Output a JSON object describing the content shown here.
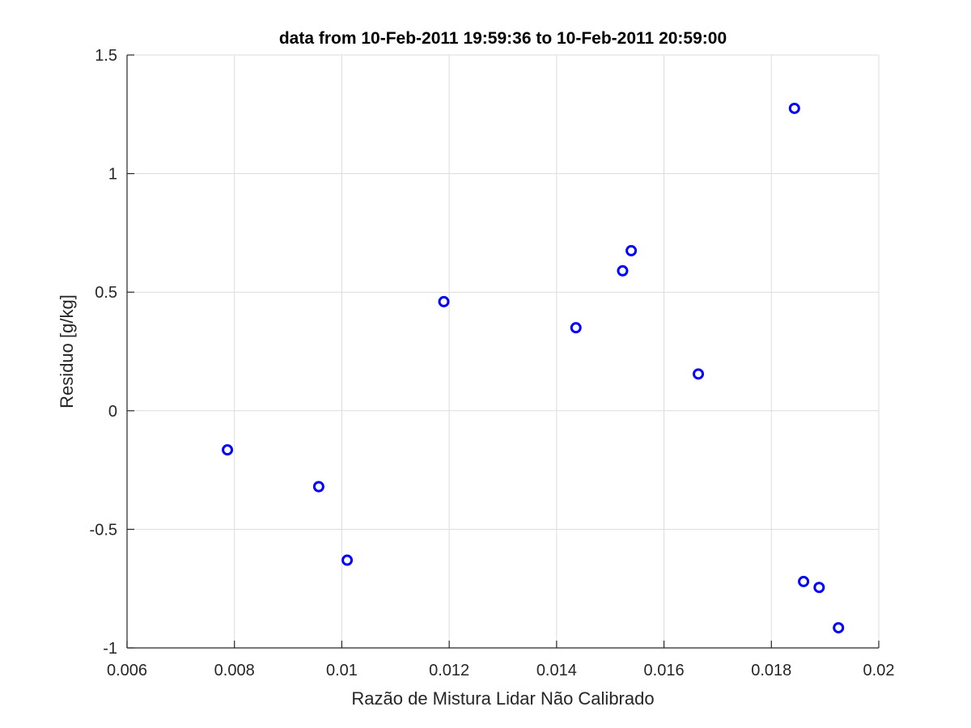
{
  "chart_data": {
    "type": "scatter",
    "title": "data from 10-Feb-2011 19:59:36 to 10-Feb-2011 20:59:00",
    "xlabel": "Razão de Mistura Lidar Não Calibrado",
    "ylabel": "Residuo [g/kg]",
    "xlim": [
      0.006,
      0.02
    ],
    "ylim": [
      -1,
      1.5
    ],
    "xticks": [
      0.006,
      0.008,
      0.01,
      0.012,
      0.014,
      0.016,
      0.018,
      0.02
    ],
    "xtick_labels": [
      "0.006",
      "0.008",
      "0.01",
      "0.012",
      "0.014",
      "0.016",
      "0.018",
      "0.02"
    ],
    "yticks": [
      -1,
      -0.5,
      0,
      0.5,
      1,
      1.5
    ],
    "ytick_labels": [
      "-1",
      "-0.5",
      "0",
      "0.5",
      "1",
      "1.5"
    ],
    "grid": true,
    "marker": "circle",
    "marker_color": "#0000ff",
    "series": [
      {
        "x": [
          0.00787,
          0.00957,
          0.0101,
          0.0119,
          0.01436,
          0.01523,
          0.01539,
          0.01664,
          0.01843,
          0.0186,
          0.01889,
          0.01925
        ],
        "y": [
          -0.165,
          -0.32,
          -0.63,
          0.46,
          0.35,
          0.59,
          0.675,
          0.155,
          1.275,
          -0.72,
          -0.745,
          -0.915
        ]
      }
    ]
  }
}
